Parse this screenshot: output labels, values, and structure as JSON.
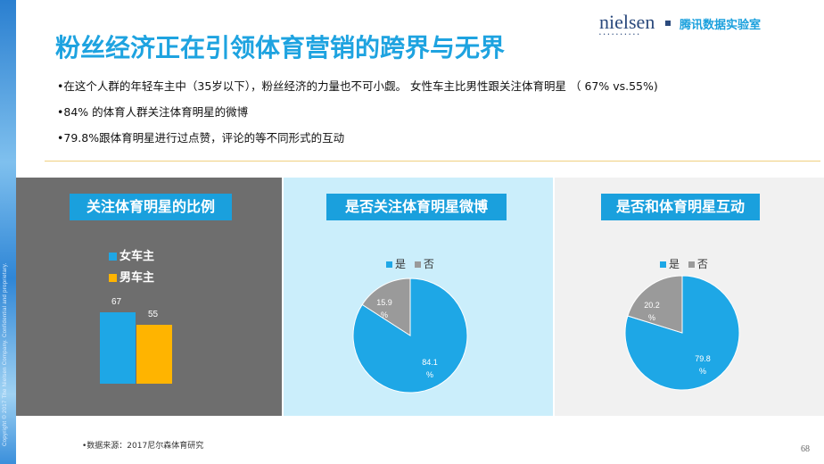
{
  "side_text": "Copyright © 2017 The Nielsen Company. Confidential and proprietary.",
  "title": "粉丝经济正在引领体育营销的跨界与无界",
  "logo": "nielsen",
  "brand": "腾讯数据实验室",
  "bullets": [
    "•在这个人群的年轻车主中（35岁以下），粉丝经济的力量也不可小觑。 女性车主比男性跟关注体育明星 （ 67% vs.55%)",
    "•84% 的体育人群关注体育明星的微博",
    "•79.8%跟体育明星进行过点赞，评论的等不同形式的互动"
  ],
  "panel1": {
    "title": "关注体育明星的比例",
    "legend": [
      "女车主",
      "男车主"
    ]
  },
  "panel2": {
    "title": "是否关注体育明星微博",
    "legend": [
      "是",
      "否"
    ]
  },
  "panel3": {
    "title": "是否和体育明星互动",
    "legend": [
      "是",
      "否"
    ]
  },
  "colors": {
    "accent": "#1aa0dd",
    "female": "#1ea7e6",
    "male": "#ffb400",
    "no": "#9a9a9a"
  },
  "chart_data": [
    {
      "type": "bar",
      "categories": [
        "女车主",
        "男车主"
      ],
      "values": [
        67,
        55
      ],
      "labels": [
        "67",
        "55"
      ],
      "ylim": [
        0,
        100
      ]
    },
    {
      "type": "pie",
      "categories": [
        "是",
        "否"
      ],
      "values": [
        84.1,
        15.9
      ],
      "labels": [
        "84.1\n%",
        "15.9\n%"
      ]
    },
    {
      "type": "pie",
      "categories": [
        "是",
        "否"
      ],
      "values": [
        79.8,
        20.2
      ],
      "labels": [
        "79.8\n%",
        "20.2\n%"
      ]
    }
  ],
  "source": "•数据来源：2017尼尔森体育研究",
  "page_number": "68"
}
